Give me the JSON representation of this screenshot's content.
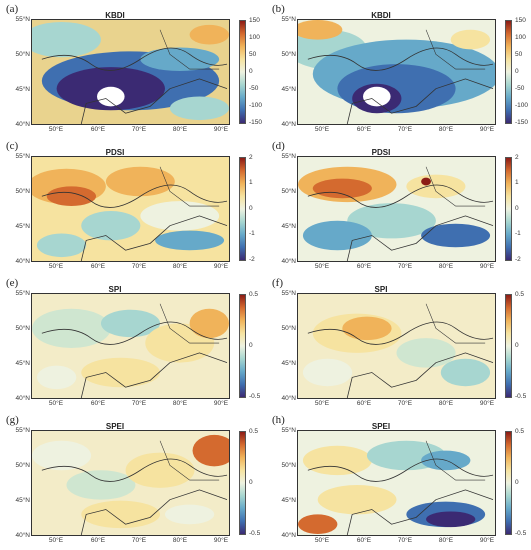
{
  "lat_labels": [
    "55°N",
    "50°N",
    "45°N",
    "40°N"
  ],
  "lon_labels": [
    "50°E",
    "60°E",
    "70°E",
    "80°E",
    "90°E"
  ],
  "colormaps": {
    "diverging": [
      "#3b2a73",
      "#3f6fb0",
      "#66a9c9",
      "#a7d6d0",
      "#eef2e0",
      "#f6e3a0",
      "#f0b35a",
      "#d46a2f",
      "#8c1c16"
    ]
  },
  "panels": [
    {
      "label": "(a)",
      "title": "KBDI",
      "ticks": [
        "150",
        "100",
        "50",
        "0",
        "-50",
        "-100",
        "-150"
      ],
      "style": "kbdi1"
    },
    {
      "label": "(b)",
      "title": "KBDI",
      "ticks": [
        "150",
        "100",
        "50",
        "0",
        "-50",
        "-100",
        "-150"
      ],
      "style": "kbdi2"
    },
    {
      "label": "(c)",
      "title": "PDSI",
      "ticks": [
        "2",
        "1",
        "0",
        "-1",
        "-2"
      ],
      "style": "pdsi1"
    },
    {
      "label": "(d)",
      "title": "PDSI",
      "ticks": [
        "2",
        "1",
        "0",
        "-1",
        "-2"
      ],
      "style": "pdsi2"
    },
    {
      "label": "(e)",
      "title": "SPI",
      "ticks": [
        "0.5",
        "0",
        "-0.5"
      ],
      "style": "spi1"
    },
    {
      "label": "(f)",
      "title": "SPI",
      "ticks": [
        "0.5",
        "0",
        "-0.5"
      ],
      "style": "spi2"
    },
    {
      "label": "(g)",
      "title": "SPEI",
      "ticks": [
        "0.5",
        "0",
        "-0.5"
      ],
      "style": "spei1"
    },
    {
      "label": "(h)",
      "title": "SPEI",
      "ticks": [
        "0.5",
        "0",
        "-0.5"
      ],
      "style": "spei2"
    }
  ]
}
